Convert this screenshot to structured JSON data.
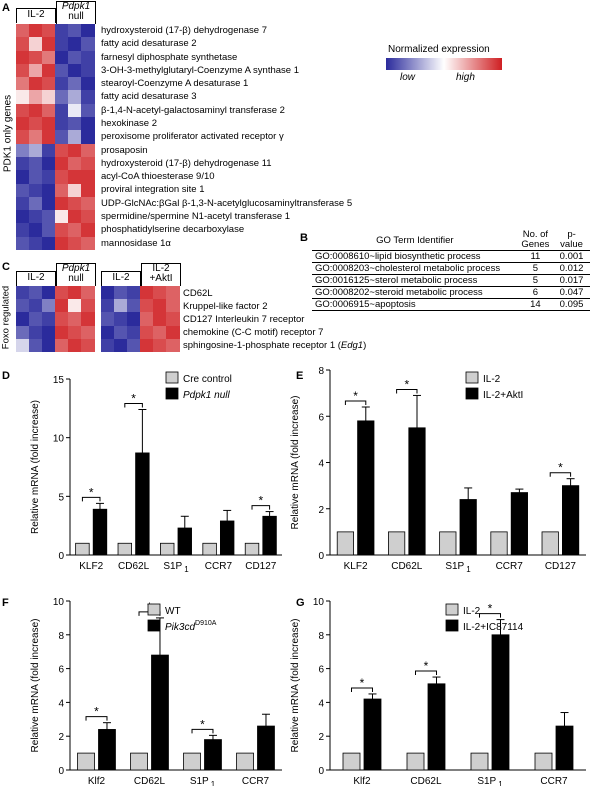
{
  "panelA": {
    "letter": "A",
    "col_headers": [
      "IL-2",
      "Pdpk1",
      "null"
    ],
    "side_label": "PDK1 only  genes",
    "genes": [
      "hydroxysteroid (17-β) dehydrogenase 7",
      "fatty acid desaturase 2",
      "farnesyl diphosphate synthetase",
      "3-OH-3-methylglutaryl-Coenzyme A synthase 1",
      "stearoyl-Coenzyme A desaturase 1",
      "fatty acid desaturase 3",
      "β-1,4-N-acetyl-galactosaminyl transferase 2",
      "hexokinase 2",
      "peroxisome proliferator activated receptor γ",
      "prosaposin",
      "hydroxysteroid (17-β) dehydrogenase 11",
      "acyl-CoA thioesterase 9/10",
      "proviral integration site 1",
      "UDP-GlcNAc:βGal β-1,3-N-acetylglucosaminyltransferase 5",
      "spermidine/spermine N1-acetyl transferase 1",
      "phosphatidylserine decarboxylase",
      "mannosidase 1α"
    ],
    "heatmap": [
      [
        0.85,
        0.95,
        0.9,
        0.05,
        0.1,
        0.0
      ],
      [
        0.9,
        0.6,
        0.95,
        0.05,
        0.0,
        0.1
      ],
      [
        0.95,
        0.9,
        0.8,
        0.0,
        0.1,
        0.05
      ],
      [
        0.9,
        0.7,
        0.95,
        0.1,
        0.0,
        0.05
      ],
      [
        0.8,
        0.95,
        0.9,
        0.05,
        0.15,
        0.0
      ],
      [
        0.55,
        0.7,
        0.6,
        0.15,
        0.3,
        0.05
      ],
      [
        0.9,
        0.95,
        0.85,
        0.05,
        0.45,
        0.1
      ],
      [
        0.95,
        0.9,
        0.95,
        0.05,
        0.1,
        0.0
      ],
      [
        0.9,
        0.8,
        0.95,
        0.1,
        0.3,
        0.0
      ],
      [
        0.2,
        0.3,
        0.05,
        0.9,
        0.95,
        0.85
      ],
      [
        0.05,
        0.1,
        0.0,
        0.95,
        0.85,
        0.9
      ],
      [
        0.0,
        0.1,
        0.05,
        0.9,
        0.95,
        0.95
      ],
      [
        0.1,
        0.05,
        0.0,
        0.85,
        0.6,
        0.95
      ],
      [
        0.05,
        0.15,
        0.0,
        0.95,
        0.9,
        0.85
      ],
      [
        0.0,
        0.05,
        0.1,
        0.55,
        0.95,
        0.9
      ],
      [
        0.05,
        0.0,
        0.1,
        0.9,
        0.85,
        0.95
      ],
      [
        0.1,
        0.05,
        0.0,
        0.95,
        0.9,
        0.85
      ]
    ]
  },
  "legend": {
    "title": "Normalized expression",
    "low": "low",
    "high": "high"
  },
  "panelB": {
    "letter": "B",
    "headers": [
      "GO Term Identifier",
      "No. of Genes",
      "p-value"
    ],
    "header_lines": {
      "genes1": "No. of",
      "genes2": "Genes",
      "p1": "p-",
      "p2": "value"
    },
    "rows": [
      [
        "GO:0008610~lipid biosynthetic process",
        "11",
        "0.001"
      ],
      [
        "GO:0008203~cholesterol metabolic process",
        "5",
        "0.012"
      ],
      [
        "GO:0016125~sterol metabolic process",
        "5",
        "0.017"
      ],
      [
        "GO:0008202~steroid metabolic process",
        "6",
        "0.047"
      ],
      [
        "GO:0006915~apoptosis",
        "14",
        "0.095"
      ]
    ]
  },
  "panelC": {
    "letter": "C",
    "side_label": "Foxo regulated",
    "left_headers": [
      "IL-2",
      "Pdpk1",
      "null"
    ],
    "right_headers": [
      "IL-2",
      "IL-2",
      "+AktI"
    ],
    "genes": [
      "CD62L",
      "Kruppel-like factor 2",
      "CD127 Interleukin 7 receptor",
      "chemokine (C-C motif) receptor 7",
      "sphingosine-1-phosphate receptor 1 (",
      "Edg1",
      ")"
    ],
    "heat_left": [
      [
        0.05,
        0.1,
        0.0,
        0.9,
        0.95,
        0.85
      ],
      [
        0.1,
        0.05,
        0.2,
        0.95,
        0.55,
        0.9
      ],
      [
        0.0,
        0.1,
        0.05,
        0.9,
        0.85,
        0.95
      ],
      [
        0.15,
        0.05,
        0.0,
        0.95,
        0.9,
        0.85
      ],
      [
        0.4,
        0.1,
        0.0,
        0.85,
        0.95,
        0.9
      ]
    ],
    "heat_right": [
      [
        0.0,
        0.1,
        0.05,
        0.95,
        0.9,
        0.85
      ],
      [
        0.05,
        0.3,
        0.1,
        0.9,
        0.95,
        0.85
      ],
      [
        0.1,
        0.05,
        0.0,
        0.85,
        0.95,
        0.9
      ],
      [
        0.0,
        0.1,
        0.05,
        0.9,
        0.85,
        0.95
      ],
      [
        0.05,
        0.0,
        0.1,
        0.95,
        0.9,
        0.85
      ]
    ]
  },
  "chart_data": [
    {
      "panel": "D",
      "type": "bar",
      "ylabel": "Relative mRNA (fold increase)",
      "ylim": [
        0,
        15
      ],
      "yticks": [
        0,
        5,
        10,
        15
      ],
      "categories": [
        "KLF2",
        "CD62L",
        "S1P",
        "CCR7",
        "CD127"
      ],
      "category_sub": [
        "",
        "",
        "1",
        "",
        ""
      ],
      "series": [
        {
          "name": "Cre control",
          "values": [
            1,
            1,
            1,
            1,
            1
          ],
          "errors": [
            0,
            0,
            0,
            0,
            0
          ],
          "color": "#cfcfcf"
        },
        {
          "name": "Pdpk1 null",
          "values": [
            3.9,
            8.7,
            2.3,
            2.9,
            3.3
          ],
          "errors": [
            0.5,
            3.7,
            1.0,
            0.9,
            0.4
          ],
          "color": "#000000"
        }
      ],
      "legend_italic": [
        false,
        true
      ],
      "significant": [
        0,
        1,
        4
      ]
    },
    {
      "panel": "E",
      "type": "bar",
      "ylabel": "Relative mRNA (fold increase)",
      "ylim": [
        0,
        8
      ],
      "yticks": [
        0,
        2,
        4,
        6,
        8
      ],
      "categories": [
        "KLF2",
        "CD62L",
        "S1P",
        "CCR7",
        "CD127"
      ],
      "category_sub": [
        "",
        "",
        "1",
        "",
        ""
      ],
      "series": [
        {
          "name": "IL-2",
          "values": [
            1,
            1,
            1,
            1,
            1
          ],
          "errors": [
            0,
            0,
            0,
            0,
            0
          ],
          "color": "#cfcfcf"
        },
        {
          "name": "IL-2+AktI",
          "values": [
            5.8,
            5.5,
            2.4,
            2.7,
            3.0
          ],
          "errors": [
            0.6,
            1.4,
            0.5,
            0.15,
            0.3
          ],
          "color": "#000000"
        }
      ],
      "legend_italic": [
        false,
        false
      ],
      "significant": [
        0,
        1,
        4
      ]
    },
    {
      "panel": "F",
      "type": "bar",
      "ylabel": "Relative mRNA (fold increase)",
      "ylim": [
        0,
        10
      ],
      "yticks": [
        0,
        2,
        4,
        6,
        8,
        10
      ],
      "categories": [
        "Klf2",
        "CD62L",
        "S1P",
        "CCR7"
      ],
      "category_sub": [
        "",
        "",
        "1",
        ""
      ],
      "series": [
        {
          "name": "WT",
          "values": [
            1,
            1,
            1,
            1
          ],
          "errors": [
            0,
            0,
            0,
            0
          ],
          "color": "#cfcfcf"
        },
        {
          "name": "Pik3cd",
          "sup": "D910A",
          "values": [
            2.4,
            6.8,
            1.8,
            2.6
          ],
          "errors": [
            0.4,
            2.2,
            0.25,
            0.7
          ],
          "color": "#000000"
        }
      ],
      "legend_italic": [
        false,
        true
      ],
      "significant": [
        0,
        1,
        2
      ]
    },
    {
      "panel": "G",
      "type": "bar",
      "ylabel": "Relative mRNA (fold increase)",
      "ylim": [
        0,
        10
      ],
      "yticks": [
        0,
        2,
        4,
        6,
        8,
        10
      ],
      "categories": [
        "Klf2",
        "CD62L",
        "S1P",
        "CCR7"
      ],
      "category_sub": [
        "",
        "",
        "1",
        ""
      ],
      "series": [
        {
          "name": "IL-2",
          "values": [
            1,
            1,
            1,
            1
          ],
          "errors": [
            0,
            0,
            0,
            0
          ],
          "color": "#cfcfcf"
        },
        {
          "name": "IL-2+IC87114",
          "values": [
            4.2,
            5.1,
            8.0,
            2.6
          ],
          "errors": [
            0.3,
            0.4,
            0.9,
            0.8
          ],
          "color": "#000000"
        }
      ],
      "legend_italic": [
        false,
        false
      ],
      "significant": [
        0,
        1,
        2
      ]
    }
  ],
  "star": "*"
}
